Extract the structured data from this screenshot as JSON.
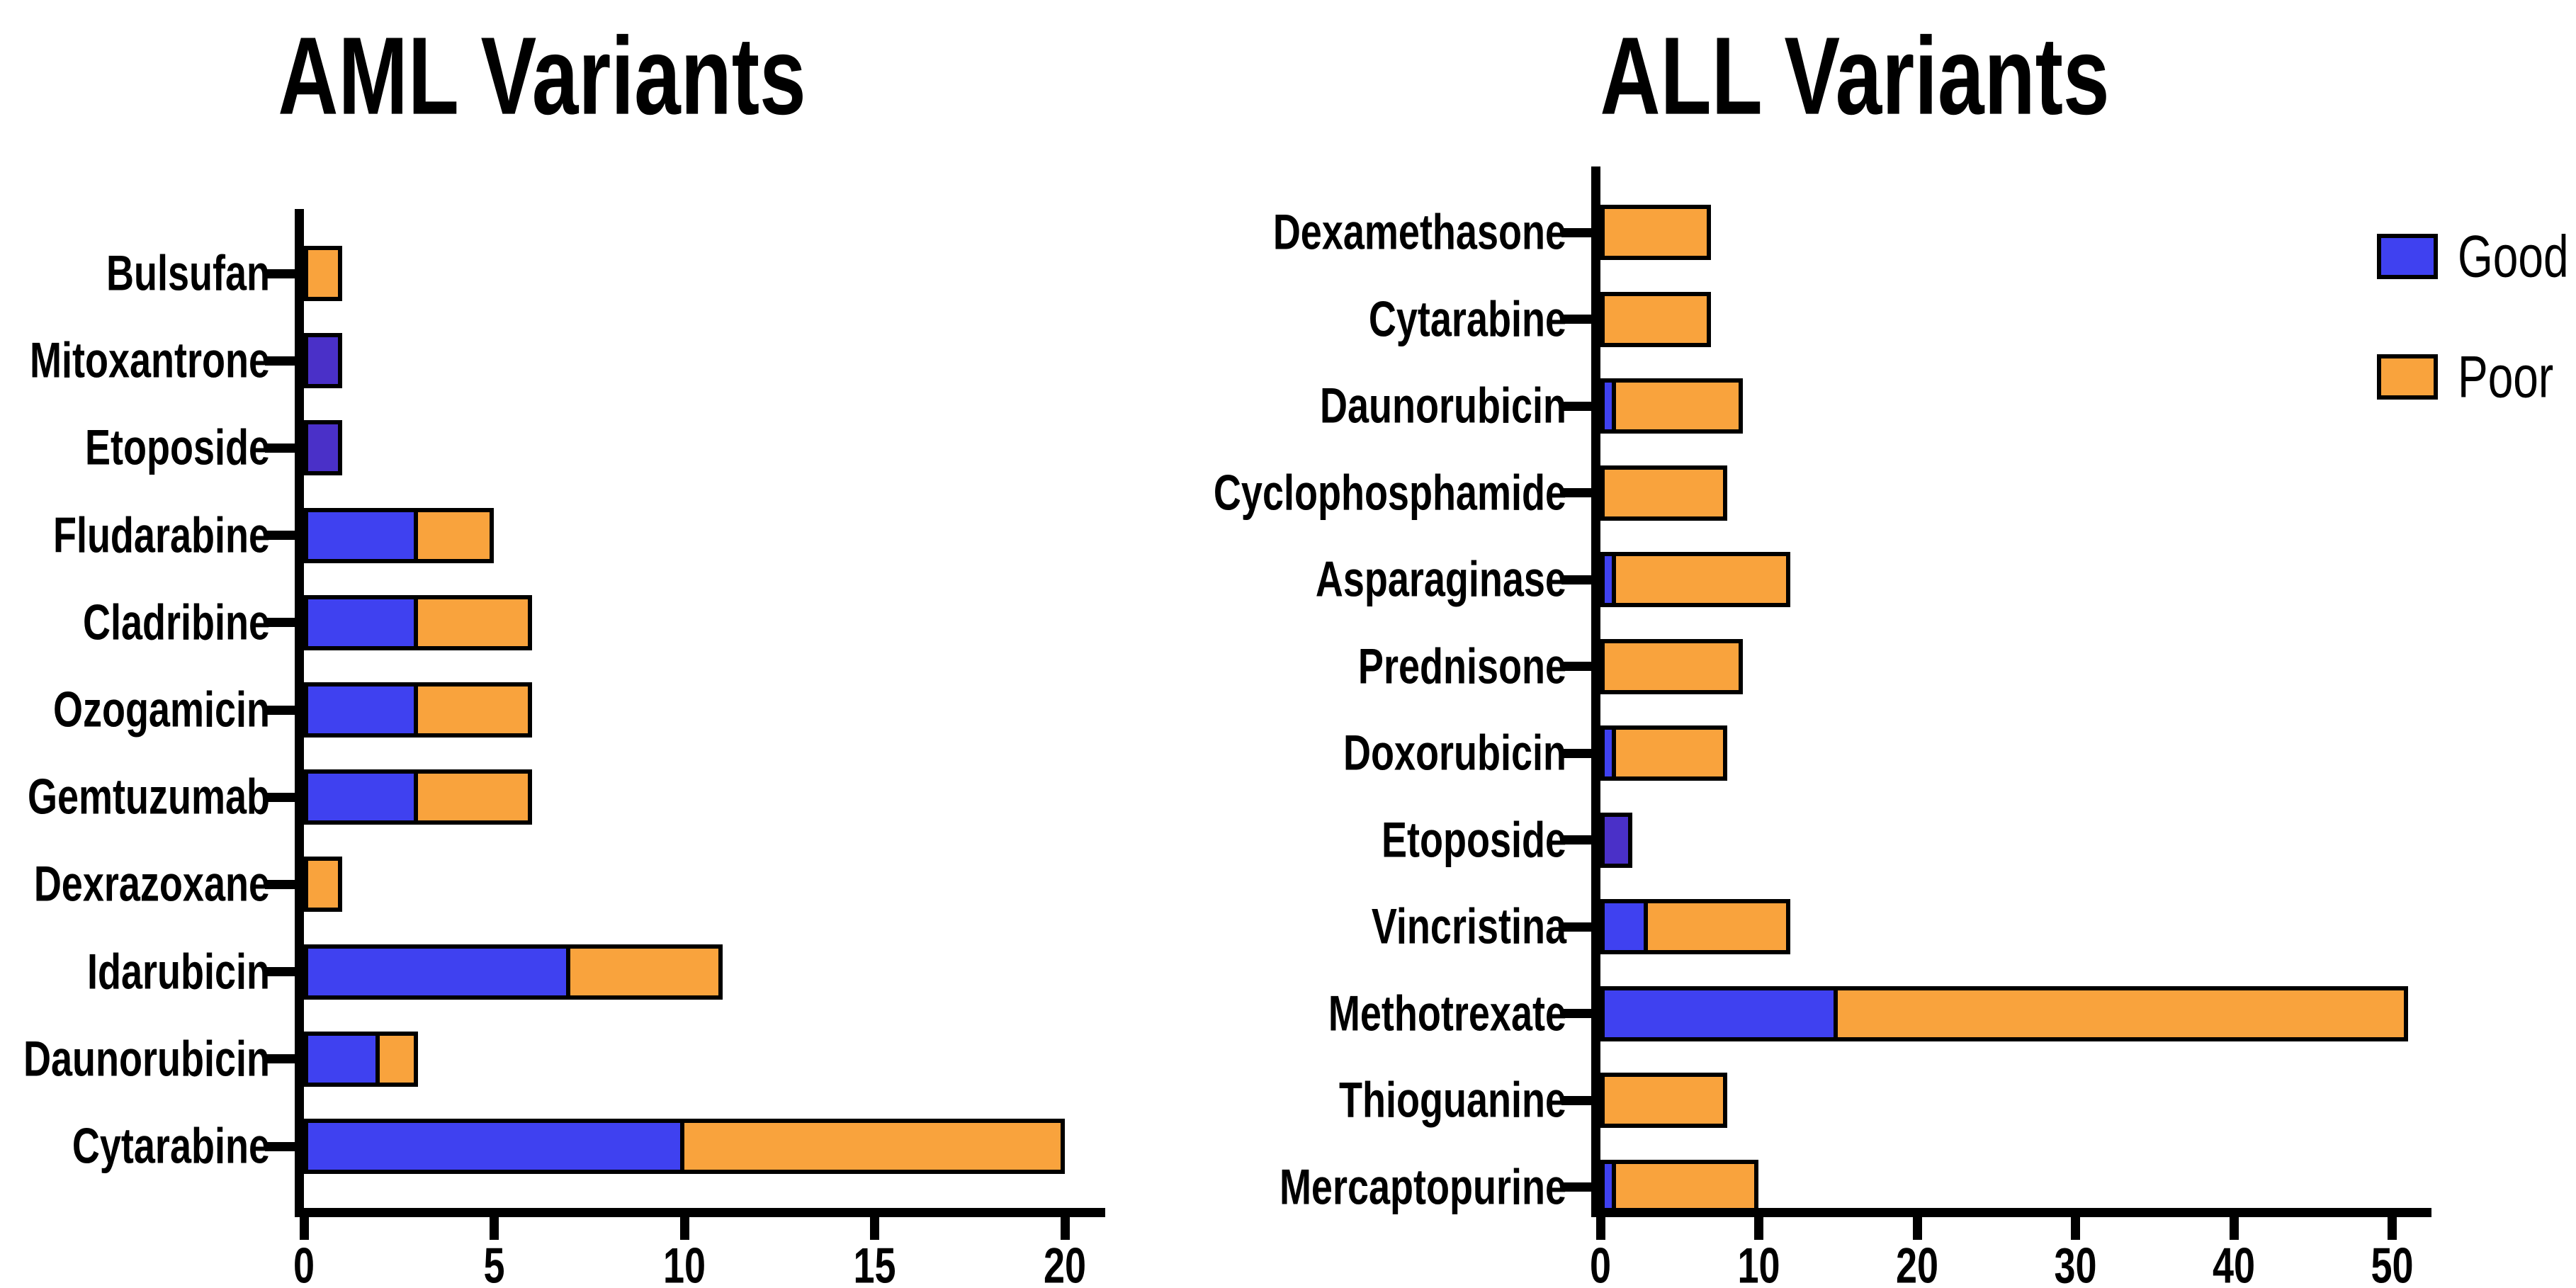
{
  "page": {
    "background": "#ffffff"
  },
  "colors": {
    "good": "#3F41F0",
    "good_only_bar": "#4A30C8",
    "poor": "#F9A33D",
    "bar_border": "#000000",
    "axis": "#000000",
    "text": "#000000"
  },
  "legend": {
    "position": "top-right",
    "items": [
      {
        "label": "Good",
        "color": "#3F41F0"
      },
      {
        "label": "Poor",
        "color": "#F9A33D"
      }
    ]
  },
  "chart_data": [
    {
      "type": "bar",
      "orientation": "horizontal",
      "stacked": true,
      "title": "AML Variants",
      "xlabel": "",
      "ylabel": "",
      "grid": false,
      "xlim": [
        0,
        21.1
      ],
      "xticks": [
        0,
        5,
        10,
        15,
        20
      ],
      "categories": [
        "Bulsufan",
        "Mitoxantrone",
        "Etoposide",
        "Fludarabine",
        "Cladribine",
        "Ozogamicin",
        "Gemtuzumab",
        "Dexrazoxane",
        "Idarubicin",
        "Daunorubicin",
        "Cytarabine"
      ],
      "series": [
        {
          "name": "Good",
          "values": [
            0,
            1,
            1,
            3,
            3,
            3,
            3,
            0,
            7,
            2,
            10
          ]
        },
        {
          "name": "Poor",
          "values": [
            1,
            0,
            0,
            2,
            3,
            3,
            3,
            1,
            4,
            1,
            10
          ]
        }
      ]
    },
    {
      "type": "bar",
      "orientation": "horizontal",
      "stacked": true,
      "title": "ALL Variants",
      "xlabel": "",
      "ylabel": "",
      "grid": false,
      "xlim": [
        0,
        52.5
      ],
      "xticks": [
        0,
        10,
        20,
        30,
        40,
        50
      ],
      "categories": [
        "Dexamethasone",
        "Cytarabine",
        "Daunorubicin",
        "Cyclophosphamide",
        "Asparaginase",
        "Prednisone",
        "Doxorubicin",
        "Etoposide",
        "Vincristina",
        "Methotrexate",
        "Thioguanine",
        "Mercaptopurine"
      ],
      "series": [
        {
          "name": "Good",
          "values": [
            0,
            0,
            1,
            0,
            1,
            0,
            1,
            2,
            3,
            15,
            0,
            1
          ]
        },
        {
          "name": "Poor",
          "values": [
            7,
            7,
            8,
            8,
            11,
            9,
            7,
            0,
            9,
            36,
            8,
            9
          ]
        }
      ]
    }
  ]
}
